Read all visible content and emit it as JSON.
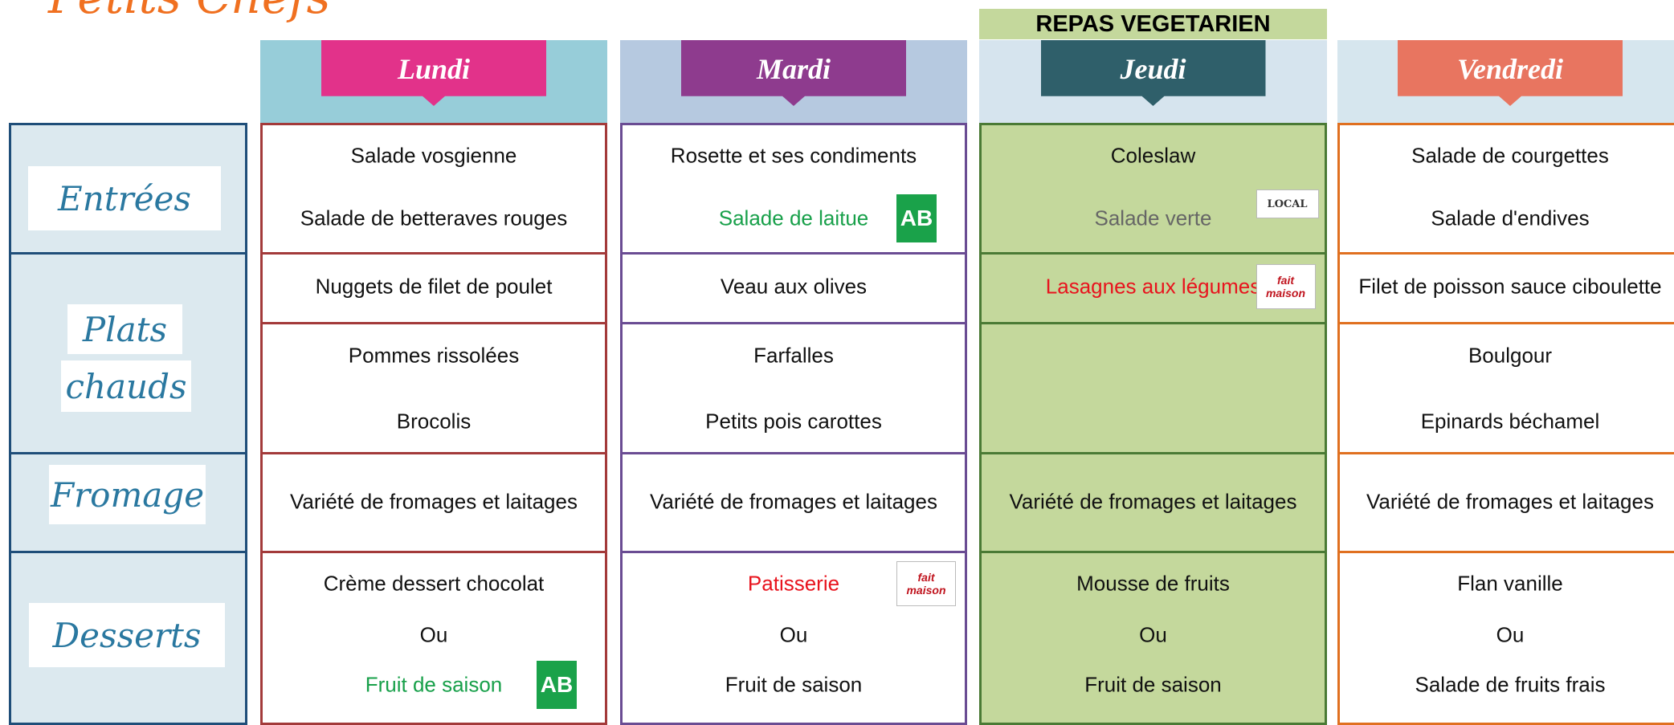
{
  "header": {
    "title": "Petits Chefs",
    "banner": "REPAS VEGETARIEN"
  },
  "row_labels": [
    [
      "Entrées"
    ],
    [
      "Plats",
      "chauds"
    ],
    [
      "Fromage"
    ],
    [
      "Desserts"
    ]
  ],
  "days": [
    {
      "name": "Lundi",
      "entrees": [
        {
          "text": "Salade vosgienne"
        },
        {
          "text": "Salade de betteraves rouges"
        }
      ],
      "plat": [
        {
          "text": "Nuggets de filet de poulet"
        }
      ],
      "sides": [
        {
          "text": "Pommes rissolées"
        },
        {
          "text": "Brocolis"
        }
      ],
      "fromage": [
        {
          "text": "Variété de fromages et laitages"
        }
      ],
      "desserts": [
        {
          "text": "Crème dessert chocolat"
        },
        {
          "text": "Ou"
        },
        {
          "text": "Fruit de saison",
          "color": "#18a04a",
          "badge": "AB"
        }
      ]
    },
    {
      "name": "Mardi",
      "entrees": [
        {
          "text": "Rosette et ses condiments"
        },
        {
          "text": "Salade de laitue",
          "color": "#18a04a",
          "badge": "AB"
        }
      ],
      "plat": [
        {
          "text": "Veau aux olives"
        }
      ],
      "sides": [
        {
          "text": "Farfalles"
        },
        {
          "text": "Petits pois carottes"
        }
      ],
      "fromage": [
        {
          "text": "Variété de fromages et laitages"
        }
      ],
      "desserts": [
        {
          "text": "Patisserie",
          "color": "#e8141e",
          "badge": "fait maison"
        },
        {
          "text": "Ou"
        },
        {
          "text": "Fruit de saison"
        }
      ]
    },
    {
      "name": "Jeudi",
      "entrees": [
        {
          "text": "Coleslaw"
        },
        {
          "text": "Salade verte",
          "color": "#666666",
          "badge": "LOCAL"
        }
      ],
      "plat": [
        {
          "text": "Lasagnes aux légumes",
          "color": "#e8141e",
          "badge": "fait maison"
        }
      ],
      "sides": [],
      "fromage": [
        {
          "text": "Variété de fromages et laitages"
        }
      ],
      "desserts": [
        {
          "text": "Mousse de fruits"
        },
        {
          "text": "Ou"
        },
        {
          "text": "Fruit de saison"
        }
      ]
    },
    {
      "name": "Vendredi",
      "entrees": [
        {
          "text": "Salade de courgettes"
        },
        {
          "text": "Salade d'endives"
        }
      ],
      "plat": [
        {
          "text": "Filet de poisson sauce ciboulette"
        }
      ],
      "sides": [
        {
          "text": "Boulgour"
        },
        {
          "text": "Epinards béchamel"
        }
      ],
      "fromage": [
        {
          "text": "Variété de fromages et laitages"
        }
      ],
      "desserts": [
        {
          "text": "Flan vanille"
        },
        {
          "text": "Ou"
        },
        {
          "text": "Salade de fruits frais"
        }
      ]
    }
  ]
}
